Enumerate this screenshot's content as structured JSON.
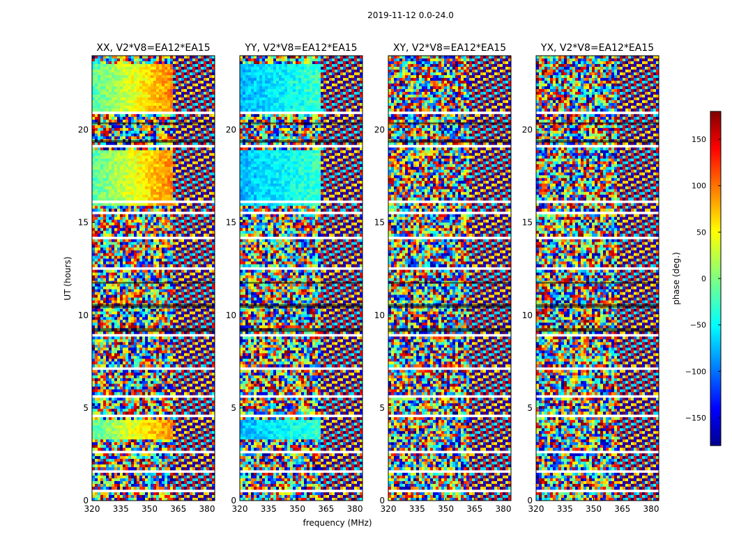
{
  "chart_data": {
    "type": "heatmap",
    "suptitle": "2019-11-12 0.0-24.0",
    "xlabel": "frequency (MHz)",
    "ylabel": "UT (hours)",
    "xlim": [
      320,
      384
    ],
    "ylim": [
      0,
      24
    ],
    "xticks": [
      320,
      335,
      350,
      365,
      380
    ],
    "yticks": [
      0,
      5,
      10,
      15,
      20
    ],
    "panels": [
      {
        "title": "XX, V2*V8=EA12*EA15",
        "pol": "XX"
      },
      {
        "title": "YY, V2*V8=EA12*EA15",
        "pol": "YY"
      },
      {
        "title": "XY, V2*V8=EA12*EA15",
        "pol": "XY"
      },
      {
        "title": "YX, V2*V8=EA12*EA15",
        "pol": "YX"
      }
    ],
    "colorbar": {
      "label": "phase (deg.)",
      "range": [
        -180,
        180
      ],
      "ticks": [
        150,
        100,
        50,
        0,
        -50,
        -100,
        -150
      ],
      "tick_labels": [
        "150",
        "100",
        "50",
        "0",
        "−50",
        "−100",
        "−150"
      ],
      "colormap": "jet"
    },
    "gaps_hours": [
      [
        0.45,
        0.6
      ],
      [
        1.5,
        1.65
      ],
      [
        2.55,
        2.7
      ],
      [
        3.3,
        3.35
      ],
      [
        4.45,
        4.6
      ],
      [
        5.6,
        5.75
      ],
      [
        7.05,
        7.15
      ],
      [
        8.35,
        8.45
      ],
      [
        8.8,
        9.0
      ],
      [
        11.5,
        11.6
      ],
      [
        12.5,
        12.65
      ],
      [
        14.1,
        14.2
      ],
      [
        15.5,
        15.6
      ],
      [
        16.0,
        16.2
      ],
      [
        19.0,
        19.2
      ],
      [
        20.85,
        21.0
      ]
    ]
  }
}
